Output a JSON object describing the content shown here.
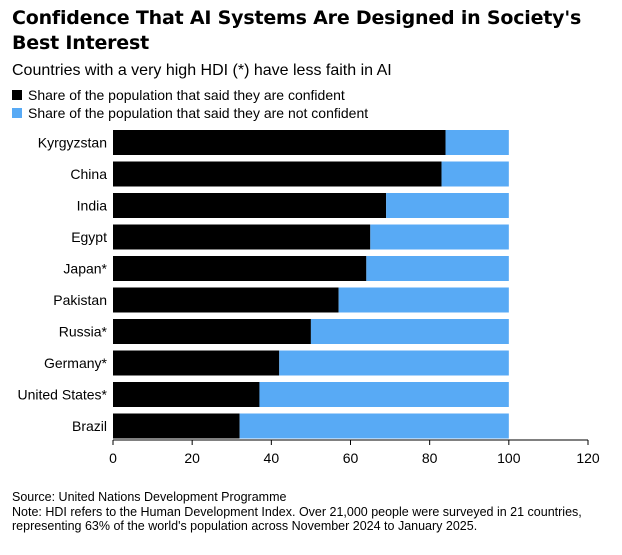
{
  "title": "Confidence That AI Systems Are Designed in Society's Best Interest",
  "subtitle": "Countries with a very high HDI (*) have less faith in AI",
  "legend": [
    {
      "label": "Share of the population that said they are confident",
      "color": "#000000"
    },
    {
      "label": "Share of the population that said they are not confident",
      "color": "#58aaf5"
    }
  ],
  "footer": {
    "source": "Source: United Nations Development Programme",
    "note": "Note: HDI refers to the Human Development Index. Over 21,000 people were surveyed in 21 countries, representing 63% of the world's population across November 2024 to January 2025."
  },
  "chart_data": {
    "type": "bar",
    "orientation": "horizontal",
    "stacked": true,
    "categories": [
      "Kyrgyzstan",
      "China",
      "India",
      "Egypt",
      "Japan*",
      "Pakistan",
      "Russia*",
      "Germany*",
      "United States*",
      "Brazil"
    ],
    "series": [
      {
        "name": "Share of the population that said they are confident",
        "color": "#000000",
        "values": [
          84,
          83,
          69,
          65,
          64,
          57,
          50,
          42,
          37,
          32
        ]
      },
      {
        "name": "Share of the population that said they are not confident",
        "color": "#58aaf5",
        "values": [
          16,
          17,
          31,
          35,
          36,
          43,
          50,
          58,
          63,
          68
        ]
      }
    ],
    "xlim": [
      0,
      120
    ],
    "xticks": [
      0,
      20,
      40,
      60,
      80,
      100,
      120
    ],
    "grid": false,
    "legend_position": "top-left"
  }
}
